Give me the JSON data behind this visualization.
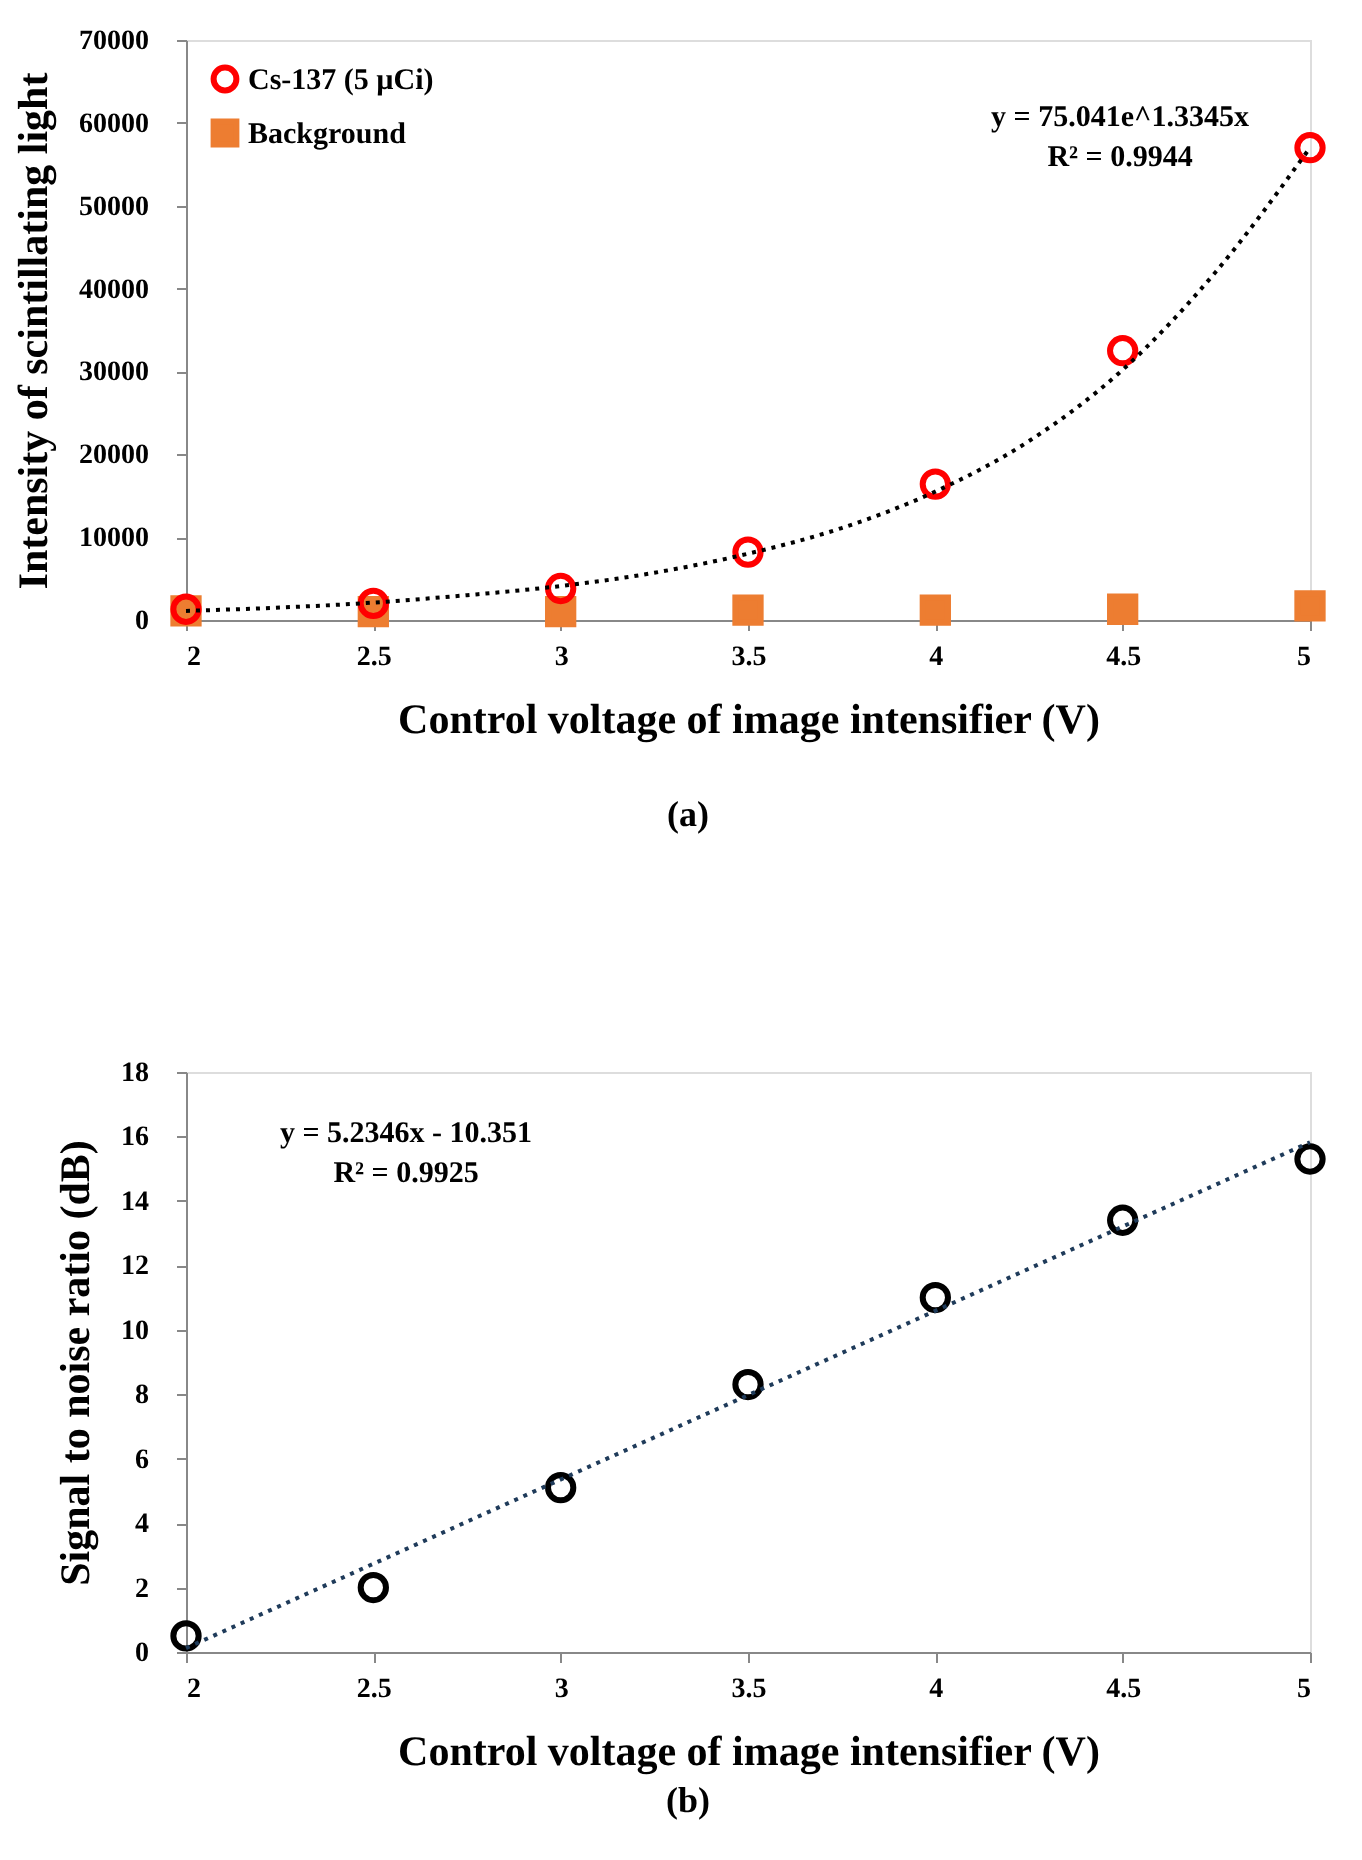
{
  "chart_data": [
    {
      "type": "scatter",
      "xlabel": "Control voltage of image intensifier (V)",
      "ylabel": "Intensity of scintillating light",
      "xlim": [
        2,
        5
      ],
      "xticks": [
        2,
        2.5,
        3,
        3.5,
        4,
        4.5,
        5
      ],
      "ylim": [
        0,
        70000
      ],
      "yticks": [
        0,
        10000,
        20000,
        30000,
        40000,
        50000,
        60000,
        70000
      ],
      "grid": false,
      "legend": "top left",
      "annotations": [
        "y = 75.041e^1.3345x",
        "R² = 0.9944",
        "(a)"
      ],
      "series": [
        {
          "name": "Cs-137 (5 µCi)",
          "color": "#ff0000",
          "marker": "circle",
          "x": [
            2,
            2.5,
            3,
            3.5,
            4,
            4.5,
            5
          ],
          "values": [
            1300,
            2000,
            3800,
            8200,
            16400,
            32500,
            57000
          ]
        },
        {
          "name": "Background",
          "color": "#ed7d31",
          "marker": "square",
          "x": [
            2,
            2.5,
            3,
            3.5,
            4,
            4.5,
            5
          ],
          "values": [
            1100,
            1000,
            1000,
            1200,
            1200,
            1300,
            1700
          ]
        },
        {
          "type": "line",
          "color": "#000000",
          "line_style": "dotted",
          "x": [
            2,
            2.25,
            2.5,
            2.75,
            3,
            3.25,
            3.5,
            3.75,
            4,
            4.25,
            4.5,
            4.75,
            5
          ],
          "values": [
            1100,
            1500,
            2100,
            3000,
            4100,
            5700,
            8000,
            11100,
            15500,
            21600,
            30200,
            42100,
            57000
          ]
        }
      ]
    },
    {
      "type": "scatter",
      "xlabel": "Control voltage of image intensifier (V)",
      "ylabel": "Signal to noise ratio (dB)",
      "xlim": [
        2,
        5
      ],
      "xticks": [
        2,
        2.5,
        3,
        3.5,
        4,
        4.5,
        5
      ],
      "ylim": [
        0,
        18
      ],
      "yticks": [
        0,
        2,
        4,
        6,
        8,
        10,
        12,
        14,
        16,
        18
      ],
      "grid": false,
      "legend": false,
      "annotations": [
        "y = 5.2346x - 10.351",
        "R² = 0.9925",
        "(b)"
      ],
      "series": [
        {
          "color": "#000000",
          "marker": "circle",
          "x": [
            2,
            2.5,
            3,
            3.5,
            4,
            4.5,
            5
          ],
          "values": [
            0.5,
            2.0,
            5.1,
            8.3,
            11.0,
            13.4,
            15.3
          ]
        },
        {
          "type": "line",
          "color": "#1f3b5a",
          "line_style": "dotted",
          "x": [
            2,
            5
          ],
          "values": [
            0.12,
            15.82
          ]
        }
      ]
    }
  ]
}
